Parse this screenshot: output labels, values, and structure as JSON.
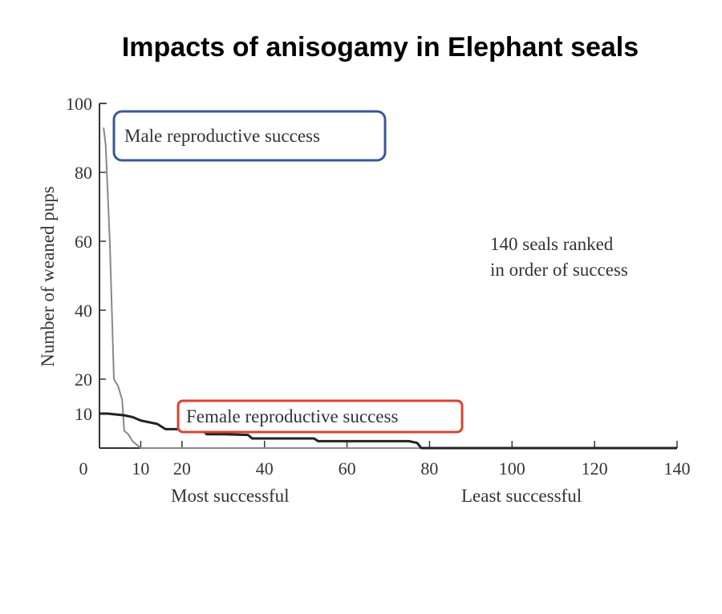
{
  "title": "Impacts of anisogamy in Elephant seals",
  "chart_data": {
    "type": "line",
    "title": "Impacts of anisogamy in Elephant seals",
    "xlabel_left": "Most successful",
    "xlabel_right": "Least successful",
    "ylabel": "Number of weaned pups",
    "xlim": [
      0,
      140
    ],
    "ylim": [
      0,
      100
    ],
    "xticks": [
      0,
      10,
      20,
      40,
      60,
      80,
      100,
      120,
      140
    ],
    "yticks": [
      10,
      20,
      40,
      60,
      80,
      100
    ],
    "annotation": [
      "140 seals ranked",
      "in order of success"
    ],
    "series": [
      {
        "name": "Male reproductive success",
        "color": "#888888",
        "x": [
          1,
          1.5,
          2.5,
          3.5,
          4.5,
          5.5,
          6,
          7,
          8,
          9,
          10,
          140
        ],
        "y": [
          93,
          88,
          60,
          20,
          18,
          14,
          5,
          4,
          2,
          1,
          0,
          0
        ]
      },
      {
        "name": "Female reproductive success",
        "color": "#222222",
        "x": [
          0,
          2,
          6,
          8,
          10,
          12,
          14,
          16,
          20,
          25,
          26,
          30,
          36,
          37,
          45,
          52,
          53,
          65,
          75,
          77,
          78,
          140
        ],
        "y": [
          10,
          10,
          9.5,
          9,
          8,
          7.5,
          7,
          5.5,
          5.5,
          5.2,
          4,
          4,
          3.8,
          2.8,
          2.8,
          2.8,
          2,
          2,
          2,
          1.5,
          0,
          0
        ]
      }
    ],
    "legend_box_colors": {
      "male": "#3a5795",
      "female": "#d9432f"
    }
  }
}
